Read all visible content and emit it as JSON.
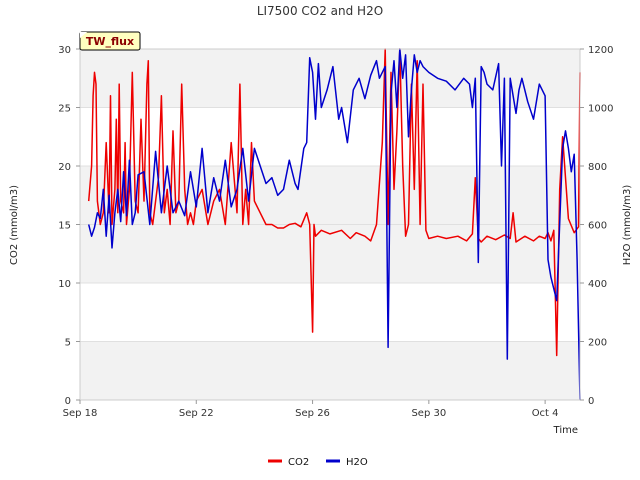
{
  "chart_data": {
    "type": "line",
    "title": "LI7500 CO2 and H2O",
    "badge": "TW_flux",
    "xlabel": "Time",
    "ylabel_left": "CO2 (mmol/m3)",
    "ylabel_right": "H2O (mmol/m3)",
    "xlim": [
      0,
      17.2
    ],
    "ylim_left": [
      0,
      30
    ],
    "ylim_right": [
      0,
      1200
    ],
    "x_ticks": [
      {
        "x": 0,
        "label": "Sep 18"
      },
      {
        "x": 4,
        "label": "Sep 22"
      },
      {
        "x": 8,
        "label": "Sep 26"
      },
      {
        "x": 12,
        "label": "Sep 30"
      },
      {
        "x": 16,
        "label": "Oct 4"
      }
    ],
    "y_ticks_left": [
      0,
      5,
      10,
      15,
      20,
      25,
      30
    ],
    "y_ticks_right": [
      0,
      200,
      400,
      600,
      800,
      1000,
      1200
    ],
    "bands": [
      [
        0,
        5
      ],
      [
        10,
        20
      ],
      [
        25,
        30
      ]
    ],
    "band_color": "#f2f2f2",
    "series": [
      {
        "name": "CO2",
        "axis": "left",
        "color": "#ee0000",
        "x": [
          0.3,
          0.4,
          0.45,
          0.5,
          0.55,
          0.6,
          0.7,
          0.8,
          0.9,
          1.0,
          1.05,
          1.1,
          1.2,
          1.25,
          1.3,
          1.35,
          1.4,
          1.5,
          1.55,
          1.6,
          1.7,
          1.8,
          1.9,
          2.0,
          2.1,
          2.2,
          2.3,
          2.35,
          2.4,
          2.5,
          2.6,
          2.7,
          2.8,
          2.9,
          3.0,
          3.1,
          3.2,
          3.3,
          3.4,
          3.5,
          3.6,
          3.7,
          3.8,
          3.9,
          4.0,
          4.2,
          4.4,
          4.6,
          4.8,
          5.0,
          5.2,
          5.4,
          5.5,
          5.6,
          5.7,
          5.8,
          5.9,
          6.0,
          6.2,
          6.4,
          6.6,
          6.8,
          7.0,
          7.2,
          7.4,
          7.6,
          7.8,
          7.9,
          8.0,
          8.05,
          8.1,
          8.3,
          8.6,
          9.0,
          9.3,
          9.5,
          9.8,
          10.0,
          10.2,
          10.4,
          10.5,
          10.6,
          10.7,
          10.8,
          10.9,
          11.0,
          11.1,
          11.2,
          11.3,
          11.4,
          11.5,
          11.6,
          11.7,
          11.8,
          11.9,
          12.0,
          12.3,
          12.6,
          13.0,
          13.3,
          13.5,
          13.6,
          13.7,
          13.8,
          14.0,
          14.3,
          14.6,
          14.8,
          14.9,
          15.0,
          15.3,
          15.6,
          15.8,
          16.0,
          16.1,
          16.2,
          16.3,
          16.4,
          16.5,
          16.6,
          16.7,
          16.8,
          17.0,
          17.15,
          17.2
        ],
        "values": [
          17,
          20,
          26,
          28,
          27,
          17,
          15,
          16,
          22,
          16,
          26,
          15,
          18,
          24,
          16,
          27,
          17,
          16,
          22,
          15,
          18,
          28,
          17,
          16,
          24,
          17,
          27,
          29,
          16,
          15,
          17,
          19,
          26,
          16,
          18,
          15,
          23,
          16,
          17,
          27,
          18,
          15,
          16,
          15,
          17,
          18,
          15,
          17,
          18,
          15,
          22,
          16,
          27,
          15,
          18,
          15,
          22,
          17,
          16,
          15,
          15,
          14.7,
          14.7,
          15,
          15.1,
          14.8,
          16,
          15,
          5.8,
          15,
          14,
          14.5,
          14.2,
          14.5,
          13.8,
          14.3,
          14,
          13.6,
          15,
          22,
          30,
          15,
          28,
          18,
          23,
          30,
          20,
          14,
          15,
          27,
          18,
          29,
          15,
          27,
          14.5,
          13.8,
          14,
          13.8,
          14,
          13.6,
          14.2,
          19,
          13.8,
          13.5,
          14,
          13.7,
          14.1,
          13.8,
          16,
          13.5,
          14,
          13.6,
          14,
          13.8,
          14.3,
          13.6,
          14.5,
          3.8,
          18,
          22.5,
          19,
          15.5,
          14.3,
          14.8,
          28
        ]
      },
      {
        "name": "H2O",
        "axis": "right",
        "color": "#0000cc",
        "x": [
          0.3,
          0.4,
          0.5,
          0.6,
          0.7,
          0.8,
          0.9,
          1.0,
          1.1,
          1.2,
          1.3,
          1.4,
          1.5,
          1.6,
          1.7,
          1.8,
          1.9,
          2.0,
          2.2,
          2.4,
          2.6,
          2.8,
          3.0,
          3.2,
          3.4,
          3.6,
          3.8,
          4.0,
          4.2,
          4.4,
          4.6,
          4.8,
          5.0,
          5.2,
          5.4,
          5.6,
          5.8,
          6.0,
          6.2,
          6.4,
          6.6,
          6.8,
          7.0,
          7.2,
          7.4,
          7.5,
          7.6,
          7.7,
          7.8,
          7.9,
          8.0,
          8.1,
          8.2,
          8.3,
          8.5,
          8.7,
          8.9,
          9.0,
          9.2,
          9.4,
          9.6,
          9.8,
          10.0,
          10.2,
          10.3,
          10.5,
          10.6,
          10.7,
          10.8,
          10.9,
          11.0,
          11.1,
          11.2,
          11.3,
          11.4,
          11.5,
          11.6,
          11.7,
          11.8,
          12.0,
          12.3,
          12.6,
          12.9,
          13.2,
          13.4,
          13.5,
          13.6,
          13.7,
          13.8,
          13.9,
          14.0,
          14.2,
          14.4,
          14.5,
          14.6,
          14.7,
          14.8,
          14.9,
          15.0,
          15.1,
          15.2,
          15.4,
          15.6,
          15.8,
          16.0,
          16.1,
          16.2,
          16.4,
          16.6,
          16.7,
          16.8,
          16.9,
          17.0,
          17.1,
          17.2
        ],
        "values": [
          600,
          560,
          590,
          640,
          620,
          720,
          560,
          700,
          520,
          640,
          720,
          610,
          780,
          630,
          820,
          600,
          640,
          770,
          780,
          600,
          850,
          640,
          800,
          640,
          680,
          630,
          780,
          660,
          860,
          640,
          760,
          680,
          820,
          660,
          720,
          860,
          680,
          860,
          800,
          740,
          760,
          700,
          720,
          820,
          740,
          720,
          790,
          860,
          880,
          1170,
          1120,
          960,
          1150,
          1000,
          1060,
          1140,
          960,
          1000,
          880,
          1060,
          1100,
          1030,
          1110,
          1160,
          1100,
          1140,
          180,
          1050,
          1160,
          1000,
          1200,
          1100,
          1180,
          900,
          1060,
          1180,
          1120,
          1160,
          1140,
          1120,
          1100,
          1090,
          1060,
          1100,
          1080,
          1000,
          1100,
          470,
          1140,
          1120,
          1080,
          1060,
          1150,
          800,
          1100,
          140,
          1100,
          1040,
          980,
          1060,
          1100,
          1020,
          960,
          1080,
          1040,
          480,
          420,
          340,
          860,
          920,
          860,
          780,
          840,
          480,
          0
        ]
      }
    ],
    "legend": [
      {
        "label": "CO2",
        "color": "#ee0000"
      },
      {
        "label": "H2O",
        "color": "#0000cc"
      }
    ]
  }
}
